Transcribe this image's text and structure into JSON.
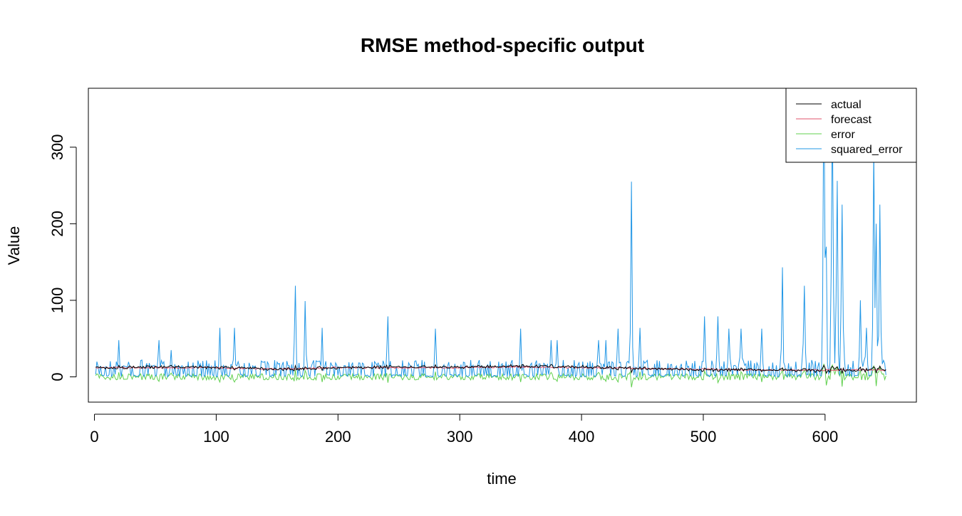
{
  "chart_data": {
    "type": "line",
    "title": "RMSE method-specific output",
    "xlabel": "time",
    "ylabel": "Value",
    "xlim": [
      -5,
      675
    ],
    "ylim": [
      -33,
      377
    ],
    "x_ticks": [
      0,
      100,
      200,
      300,
      400,
      500,
      600
    ],
    "y_ticks": [
      0,
      100,
      200,
      300
    ],
    "grid": false,
    "legend": {
      "position": "top-right"
    },
    "x_range": [
      1,
      650
    ],
    "series": [
      {
        "name": "actual",
        "color": "#000000",
        "points": [
          [
            1,
            12
          ],
          [
            50,
            13
          ],
          [
            100,
            13
          ],
          [
            150,
            10
          ],
          [
            200,
            12
          ],
          [
            250,
            13
          ],
          [
            300,
            13
          ],
          [
            350,
            14
          ],
          [
            400,
            13
          ],
          [
            450,
            11
          ],
          [
            500,
            9
          ],
          [
            550,
            9
          ],
          [
            600,
            8
          ],
          [
            650,
            9
          ]
        ]
      },
      {
        "name": "forecast",
        "color": "#DF536B",
        "points": [
          [
            1,
            12
          ],
          [
            50,
            12
          ],
          [
            100,
            12
          ],
          [
            150,
            10
          ],
          [
            200,
            12
          ],
          [
            250,
            12
          ],
          [
            300,
            12
          ],
          [
            350,
            13
          ],
          [
            400,
            12
          ],
          [
            450,
            11
          ],
          [
            500,
            10
          ],
          [
            550,
            9
          ],
          [
            600,
            9
          ],
          [
            650,
            9
          ]
        ]
      },
      {
        "name": "error",
        "color": "#61D04F",
        "points": [
          [
            1,
            0
          ],
          [
            100,
            0
          ],
          [
            200,
            0
          ],
          [
            300,
            0
          ],
          [
            400,
            0
          ],
          [
            500,
            0
          ],
          [
            600,
            0
          ],
          [
            650,
            0
          ]
        ]
      },
      {
        "name": "squared_error",
        "color": "#2297E6",
        "peaks": [
          [
            20,
            48
          ],
          [
            53,
            48
          ],
          [
            63,
            35
          ],
          [
            103,
            64
          ],
          [
            115,
            64
          ],
          [
            165,
            119
          ],
          [
            173,
            99
          ],
          [
            187,
            64
          ],
          [
            241,
            79
          ],
          [
            280,
            63
          ],
          [
            350,
            63
          ],
          [
            375,
            48
          ],
          [
            380,
            48
          ],
          [
            414,
            48
          ],
          [
            420,
            48
          ],
          [
            430,
            63
          ],
          [
            441,
            255
          ],
          [
            448,
            64
          ],
          [
            501,
            79
          ],
          [
            512,
            79
          ],
          [
            521,
            63
          ],
          [
            531,
            63
          ],
          [
            548,
            63
          ],
          [
            565,
            143
          ],
          [
            583,
            119
          ],
          [
            599,
            400
          ],
          [
            601,
            170
          ],
          [
            606,
            350
          ],
          [
            610,
            256
          ],
          [
            614,
            225
          ],
          [
            629,
            100
          ],
          [
            634,
            64
          ],
          [
            640,
            300
          ],
          [
            642,
            200
          ],
          [
            645,
            225
          ]
        ]
      }
    ]
  }
}
